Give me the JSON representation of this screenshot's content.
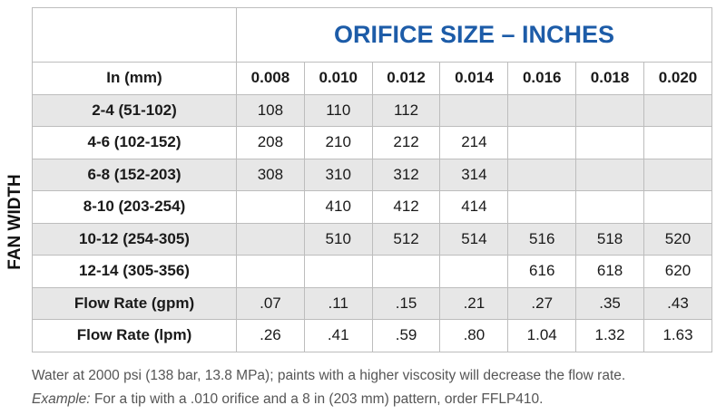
{
  "table": {
    "title": "ORIFICE SIZE – INCHES",
    "side_label": "FAN WIDTH",
    "columns": [
      "In (mm)",
      "0.008",
      "0.010",
      "0.012",
      "0.014",
      "0.016",
      "0.018",
      "0.020"
    ],
    "rows": [
      [
        "2-4 (51-102)",
        "108",
        "110",
        "112",
        null,
        null,
        null,
        null
      ],
      [
        "4-6 (102-152)",
        "208",
        "210",
        "212",
        "214",
        null,
        null,
        null
      ],
      [
        "6-8 (152-203)",
        "308",
        "310",
        "312",
        "314",
        null,
        null,
        null
      ],
      [
        "8-10 (203-254)",
        null,
        "410",
        "412",
        "414",
        null,
        null,
        null
      ],
      [
        "10-12 (254-305)",
        null,
        "510",
        "512",
        "514",
        "516",
        "518",
        "520"
      ],
      [
        "12-14 (305-356)",
        null,
        null,
        null,
        null,
        "616",
        "618",
        "620"
      ],
      [
        "Flow Rate (gpm)",
        ".07",
        ".11",
        ".15",
        ".21",
        ".27",
        ".35",
        ".43"
      ],
      [
        "Flow Rate (lpm)",
        ".26",
        ".41",
        ".59",
        ".80",
        "1.04",
        "1.32",
        "1.63"
      ]
    ]
  },
  "notes": {
    "line1": "Water at 2000 psi (138 bar, 13.8 MPa); paints with a higher viscosity will decrease the flow rate.",
    "example_label": "Example:",
    "example_text": "For a tip with a .010 orifice and a 8 in (203 mm) pattern, order FFLP410."
  }
}
